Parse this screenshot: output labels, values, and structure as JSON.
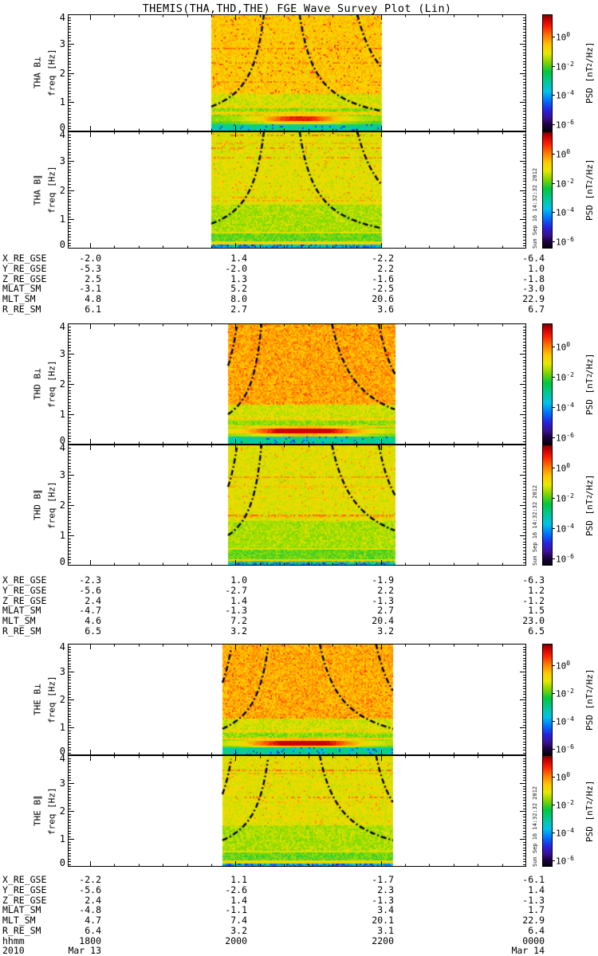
{
  "chart_data": {
    "type": "heatmap",
    "title": "THEMIS(THA,THD,THE) FGE Wave Survey Plot (Lin)",
    "ylabel": "freq [Hz]",
    "ylim": [
      0,
      4
    ],
    "y_ticks": [
      "4",
      "3",
      "2",
      "1",
      "0"
    ],
    "x_ticks": [
      "1800",
      "2000",
      "2200",
      "0000"
    ],
    "x_axis_label": "hhmm",
    "year_label": "2010",
    "date_start": "Mar 13",
    "date_end": "Mar 14",
    "timestamp": "Sun Sep 16 14:32:32 2012",
    "colorbar": {
      "tick_base": "10",
      "tick_exponents": [
        "0",
        "-2",
        "-4",
        "-6"
      ],
      "label_prefix": "PSD [nT",
      "label_sup": "2",
      "label_suffix": "/Hz]"
    },
    "groups": [
      {
        "sat": "THA",
        "panels": [
          {
            "label": "THA B⊥",
            "ylabel": "freq [Hz]",
            "kind": "perp",
            "seed": 101,
            "hot": 0.0,
            "streak": {
              "amp": 0.82,
              "center": 0.52,
              "width": 0.2
            }
          },
          {
            "label": "THA B∥",
            "ylabel": "freq [Hz]",
            "kind": "par",
            "seed": 102
          }
        ],
        "window": [
          265,
          478
        ],
        "curves": {
          "rise_f0": 0.85,
          "rise_top": 0.31,
          "fall_top": 0.52,
          "fall_f1": 0.7,
          "fall2_top": 0.86,
          "fall2_f1": 2.2,
          "rise2": false
        },
        "table": [
          {
            "label": "X_RE_GSE",
            "values": [
              "-2.0",
              "1.4",
              "-2.2",
              "-6.4"
            ]
          },
          {
            "label": "Y_RE_GSE",
            "values": [
              "-5.3",
              "-2.0",
              "2.2",
              "1.0"
            ]
          },
          {
            "label": "Z_RE_GSE",
            "values": [
              "2.5",
              "1.3",
              "-1.6",
              "-1.8"
            ]
          },
          {
            "label": "MLAT_SM",
            "values": [
              "-3.1",
              "5.2",
              "-2.5",
              "-3.0"
            ]
          },
          {
            "label": "MLT_SM",
            "values": [
              "4.8",
              "8.0",
              "20.6",
              "22.9"
            ]
          },
          {
            "label": "R_RE_SM",
            "values": [
              "6.1",
              "2.7",
              "3.6",
              "6.7"
            ]
          }
        ]
      },
      {
        "sat": "THD",
        "panels": [
          {
            "label": "THD B⊥",
            "ylabel": "freq [Hz]",
            "kind": "perp",
            "seed": 201,
            "hot": 0.05,
            "streak": {
              "amp": 1.0,
              "center": 0.45,
              "width": 0.28
            }
          },
          {
            "label": "THD B∥",
            "ylabel": "freq [Hz]",
            "kind": "par",
            "seed": 202
          }
        ],
        "window": [
          286,
          496
        ],
        "curves": {
          "rise_f0": 1.0,
          "rise_top": 0.2,
          "fall_top": 0.62,
          "fall_f1": 1.15,
          "fall2_top": 0.9,
          "fall2_f1": 2.3,
          "rise2": true
        },
        "table": [
          {
            "label": "X_RE_GSE",
            "values": [
              "-2.3",
              "1.0",
              "-1.9",
              "-6.3"
            ]
          },
          {
            "label": "Y_RE_GSE",
            "values": [
              "-5.6",
              "-2.7",
              "2.2",
              "1.2"
            ]
          },
          {
            "label": "Z_RE_GSE",
            "values": [
              "2.4",
              "1.4",
              "-1.3",
              "-1.2"
            ]
          },
          {
            "label": "MLAT_SM",
            "values": [
              "-4.7",
              "-1.3",
              "2.7",
              "1.5"
            ]
          },
          {
            "label": "MLT_SM",
            "values": [
              "4.6",
              "7.2",
              "20.4",
              "23.0"
            ]
          },
          {
            "label": "R_RE_SM",
            "values": [
              "6.5",
              "3.2",
              "3.2",
              "6.5"
            ]
          }
        ]
      },
      {
        "sat": "THE",
        "panels": [
          {
            "label": "THE B⊥",
            "ylabel": "freq [Hz]",
            "kind": "perp",
            "seed": 301,
            "hot": 0.04,
            "streak": {
              "amp": 1.0,
              "center": 0.47,
              "width": 0.26
            }
          },
          {
            "label": "THE B∥",
            "ylabel": "freq [Hz]",
            "kind": "par",
            "seed": 302
          }
        ],
        "window": [
          279,
          493
        ],
        "curves": {
          "rise_f0": 0.95,
          "rise_top": 0.27,
          "fall_top": 0.57,
          "fall_f1": 0.95,
          "fall2_top": 0.9,
          "fall2_f1": 2.3,
          "rise2": true
        },
        "table": [
          {
            "label": "X_RE_GSE",
            "values": [
              "-2.2",
              "1.1",
              "-1.7",
              "-6.1"
            ]
          },
          {
            "label": "Y_RE_GSE",
            "values": [
              "-5.6",
              "-2.6",
              "2.3",
              "1.4"
            ]
          },
          {
            "label": "Z_RE_GSE",
            "values": [
              "2.4",
              "1.4",
              "-1.3",
              "-1.3"
            ]
          },
          {
            "label": "MLAT_SM",
            "values": [
              "-4.8",
              "-1.1",
              "3.4",
              "1.7"
            ]
          },
          {
            "label": "MLT_SM",
            "values": [
              "4.7",
              "7.4",
              "20.1",
              "22.9"
            ]
          },
          {
            "label": "R_RE_SM",
            "values": [
              "6.4",
              "3.2",
              "3.1",
              "6.4"
            ]
          }
        ]
      }
    ]
  }
}
